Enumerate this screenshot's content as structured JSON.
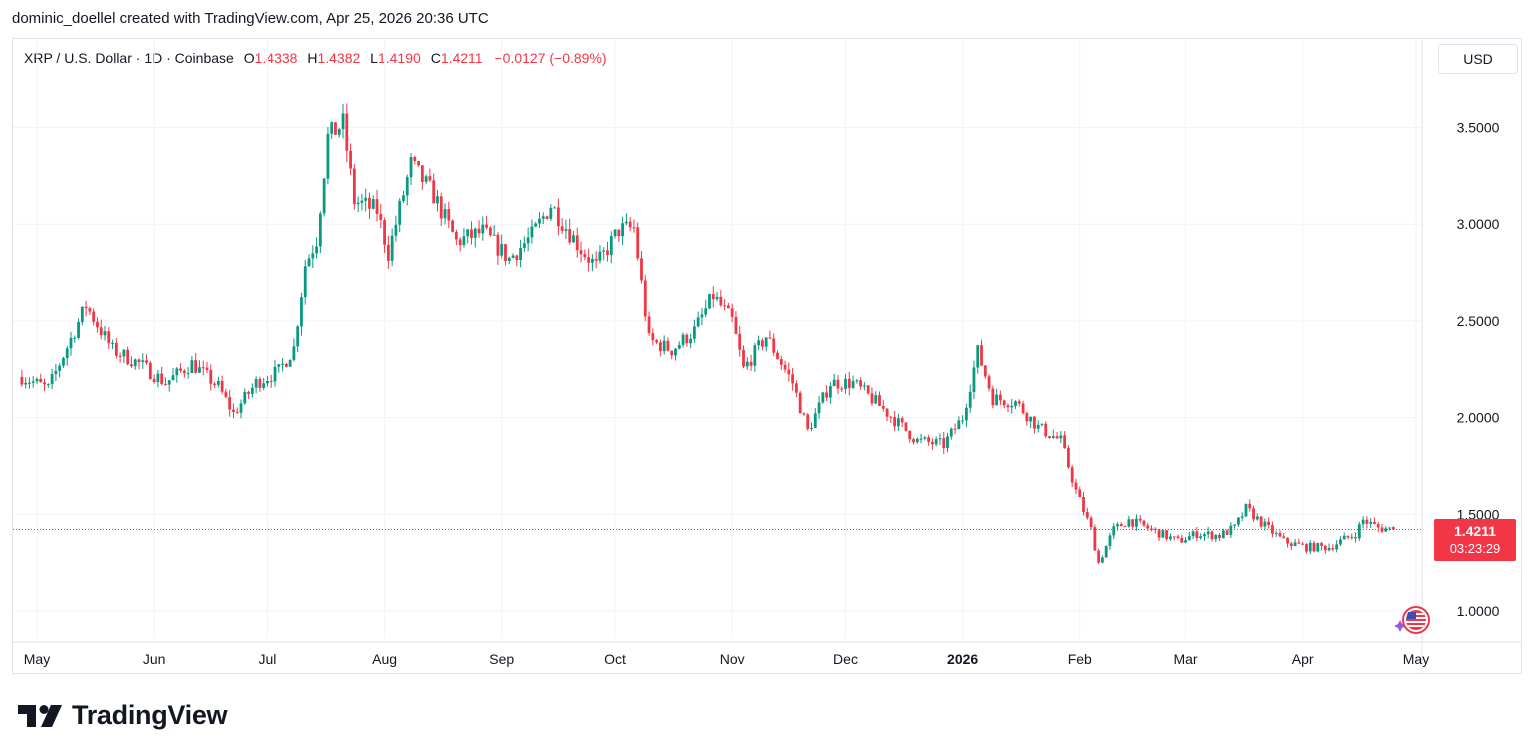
{
  "caption": "dominic_doellel created with TradingView.com, Apr 25, 2026 20:36 UTC",
  "legend": {
    "symbol": "XRP / U.S. Dollar · 1D · Coinbase",
    "o_label": "O",
    "o_value": "1.4338",
    "h_label": "H",
    "h_value": "1.4382",
    "l_label": "L",
    "l_value": "1.4190",
    "c_label": "C",
    "c_value": "1.4211",
    "change": "−0.0127 (−0.89%)"
  },
  "currency_button": "USD",
  "last_price_tag": {
    "price": "1.4211",
    "countdown": "03:23:29"
  },
  "logo_text": "TradingView",
  "colors": {
    "up": "#089981",
    "down": "#f23645",
    "grid": "#f0f3fa",
    "axis_text": "#131722"
  },
  "chart_data": {
    "type": "candlestick",
    "title": "XRP / U.S. Dollar · 1D · Coinbase",
    "y_ticks": [
      "3.5000",
      "3.0000",
      "2.5000",
      "2.0000",
      "1.5000",
      "1.0000"
    ],
    "x_ticks": [
      "May",
      "Jun",
      "Jul",
      "Aug",
      "Sep",
      "Oct",
      "Nov",
      "Dec",
      "2026",
      "Feb",
      "Mar",
      "Apr",
      "May"
    ],
    "last_price": 1.4211,
    "grid": true,
    "series": [
      {
        "unit": "USD",
        "points": [
          [
            "2025-04-27",
            2.21
          ],
          [
            "2025-05-04",
            2.15
          ],
          [
            "2025-05-11",
            2.45
          ],
          [
            "2025-05-14",
            2.58
          ],
          [
            "2025-05-21",
            2.35
          ],
          [
            "2025-05-28",
            2.28
          ],
          [
            "2025-06-04",
            2.18
          ],
          [
            "2025-06-11",
            2.28
          ],
          [
            "2025-06-18",
            2.16
          ],
          [
            "2025-06-22",
            2.02
          ],
          [
            "2025-06-28",
            2.18
          ],
          [
            "2025-07-04",
            2.24
          ],
          [
            "2025-07-08",
            2.36
          ],
          [
            "2025-07-11",
            2.79
          ],
          [
            "2025-07-14",
            2.92
          ],
          [
            "2025-07-17",
            3.45
          ],
          [
            "2025-07-21",
            3.52
          ],
          [
            "2025-07-24",
            3.12
          ],
          [
            "2025-07-30",
            3.07
          ],
          [
            "2025-08-02",
            2.85
          ],
          [
            "2025-08-08",
            3.31
          ],
          [
            "2025-08-14",
            3.15
          ],
          [
            "2025-08-20",
            2.91
          ],
          [
            "2025-08-27",
            2.96
          ],
          [
            "2025-09-03",
            2.82
          ],
          [
            "2025-09-09",
            2.94
          ],
          [
            "2025-09-14",
            3.1
          ],
          [
            "2025-09-22",
            2.87
          ],
          [
            "2025-09-26",
            2.78
          ],
          [
            "2025-10-02",
            2.97
          ],
          [
            "2025-10-06",
            2.98
          ],
          [
            "2025-10-10",
            2.4
          ],
          [
            "2025-10-16",
            2.35
          ],
          [
            "2025-10-22",
            2.45
          ],
          [
            "2025-10-27",
            2.63
          ],
          [
            "2025-11-01",
            2.5
          ],
          [
            "2025-11-04",
            2.25
          ],
          [
            "2025-11-10",
            2.42
          ],
          [
            "2025-11-17",
            2.18
          ],
          [
            "2025-11-21",
            1.93
          ],
          [
            "2025-11-27",
            2.18
          ],
          [
            "2025-12-03",
            2.18
          ],
          [
            "2025-12-09",
            2.08
          ],
          [
            "2025-12-15",
            1.97
          ],
          [
            "2025-12-20",
            1.88
          ],
          [
            "2025-12-27",
            1.86
          ],
          [
            "2026-01-01",
            2.0
          ],
          [
            "2026-01-05",
            2.34
          ],
          [
            "2026-01-09",
            2.1
          ],
          [
            "2026-01-15",
            2.08
          ],
          [
            "2026-01-21",
            1.95
          ],
          [
            "2026-01-27",
            1.88
          ],
          [
            "2026-01-31",
            1.62
          ],
          [
            "2026-02-04",
            1.42
          ],
          [
            "2026-02-06",
            1.25
          ],
          [
            "2026-02-10",
            1.42
          ],
          [
            "2026-02-14",
            1.47
          ],
          [
            "2026-02-20",
            1.42
          ],
          [
            "2026-02-27",
            1.36
          ],
          [
            "2026-03-04",
            1.4
          ],
          [
            "2026-03-10",
            1.39
          ],
          [
            "2026-03-14",
            1.43
          ],
          [
            "2026-03-17",
            1.53
          ],
          [
            "2026-03-22",
            1.44
          ],
          [
            "2026-03-27",
            1.36
          ],
          [
            "2026-04-02",
            1.33
          ],
          [
            "2026-04-08",
            1.33
          ],
          [
            "2026-04-12",
            1.37
          ],
          [
            "2026-04-15",
            1.4
          ],
          [
            "2026-04-17",
            1.47
          ],
          [
            "2026-04-21",
            1.43
          ],
          [
            "2026-04-25",
            1.4211
          ]
        ]
      }
    ]
  }
}
